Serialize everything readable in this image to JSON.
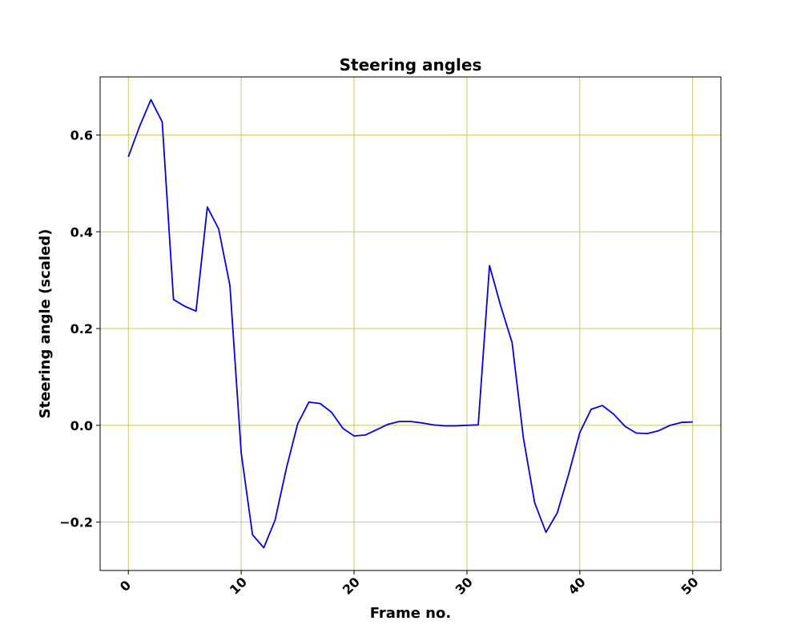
{
  "chart_data": {
    "type": "line",
    "title": "Steering angles",
    "xlabel": "Frame no.",
    "ylabel": "Steering angle (scaled)",
    "xlim": [
      -2.5,
      52.5
    ],
    "ylim": [
      -0.3,
      0.72
    ],
    "x_ticks": [
      0,
      10,
      20,
      30,
      40,
      50
    ],
    "x_tick_labels": [
      "0",
      "10",
      "20",
      "30",
      "40",
      "50"
    ],
    "y_ticks": [
      -0.2,
      0.0,
      0.2,
      0.4,
      0.6
    ],
    "y_tick_labels": [
      "−0.2",
      "0.0",
      "0.2",
      "0.4",
      "0.6"
    ],
    "grid": true,
    "grid_color": "#bfbf3f",
    "line_color": "#0000e6",
    "x": [
      0,
      1,
      2,
      3,
      4,
      5,
      6,
      7,
      8,
      9,
      10,
      11,
      12,
      13,
      14,
      15,
      16,
      17,
      18,
      19,
      20,
      21,
      22,
      23,
      24,
      25,
      26,
      27,
      28,
      29,
      30,
      31,
      32,
      33,
      34,
      35,
      36,
      37,
      38,
      39,
      40,
      41,
      42,
      43,
      44,
      45,
      46,
      47,
      48,
      49,
      50
    ],
    "series": [
      {
        "values": [
          0.555,
          0.618,
          0.673,
          0.627,
          0.26,
          0.246,
          0.236,
          0.451,
          0.406,
          0.289,
          -0.057,
          -0.226,
          -0.253,
          -0.196,
          -0.089,
          0.003,
          0.048,
          0.045,
          0.027,
          -0.006,
          -0.022,
          -0.02,
          -0.009,
          0.002,
          0.008,
          0.008,
          0.005,
          0.001,
          -0.001,
          -0.001,
          0.0,
          0.001,
          0.33,
          0.246,
          0.171,
          -0.026,
          -0.16,
          -0.221,
          -0.181,
          -0.102,
          -0.015,
          0.033,
          0.041,
          0.023,
          -0.002,
          -0.016,
          -0.017,
          -0.011,
          0.0,
          0.006,
          0.007
        ]
      }
    ]
  }
}
